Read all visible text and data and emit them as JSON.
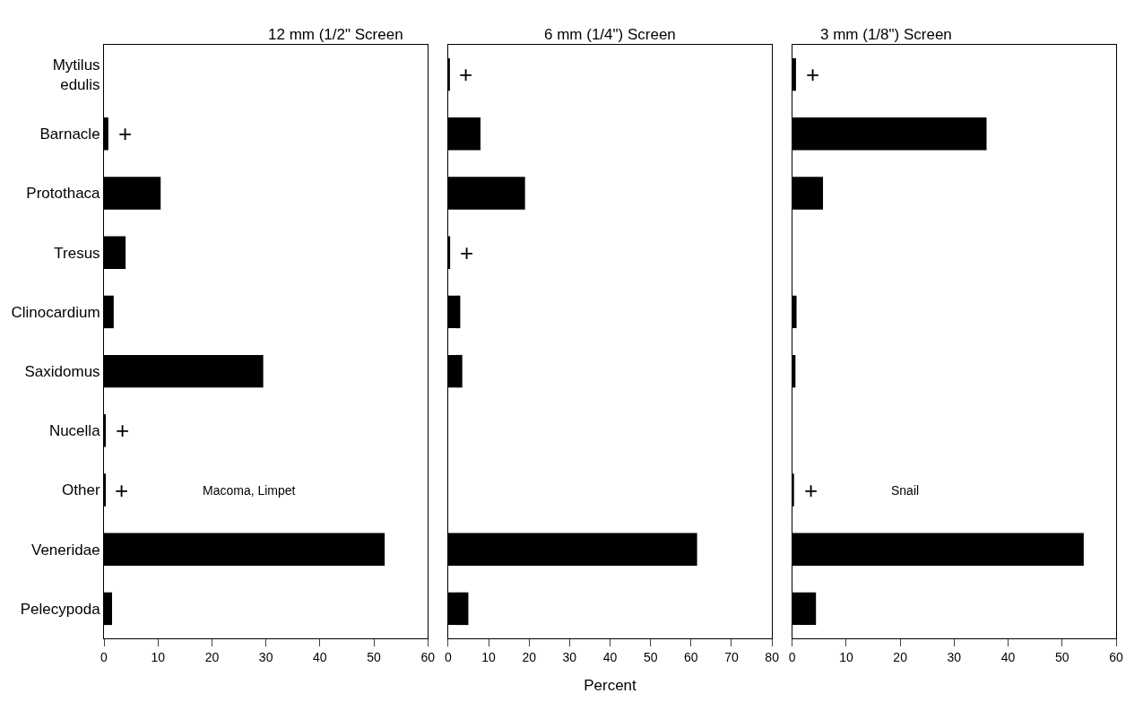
{
  "chart_data": [
    {
      "type": "bar",
      "orientation": "horizontal",
      "title": "12 mm (1/2\" Screen",
      "categories": [
        "Mytilus edulis",
        "Barnacle",
        "Protothaca",
        "Tresus",
        "Clinocardium",
        "Saxidomus",
        "Nucella",
        "Other",
        "Veneridae",
        "Pelecypoda"
      ],
      "values": [
        null,
        0.8,
        10.5,
        4,
        1.8,
        29.5,
        0.3,
        0.2,
        52,
        1.5
      ],
      "color": "#000000",
      "xlim": [
        0,
        60
      ],
      "xticks": [
        0,
        10,
        20,
        30,
        40,
        50,
        60
      ],
      "value_labels": [
        null,
        "+",
        null,
        null,
        null,
        null,
        "+",
        "+",
        null,
        null
      ],
      "annotations": [
        "Macoma, Limpet"
      ]
    },
    {
      "type": "bar",
      "orientation": "horizontal",
      "title": "6 mm (1/4\") Screen",
      "xlabel": "Percent",
      "tick_labels": "x",
      "categories": [
        null,
        null,
        null,
        null,
        null,
        null,
        null,
        null,
        null,
        null
      ],
      "values": [
        0.3,
        8,
        19,
        0.5,
        3,
        3.5,
        null,
        null,
        61.5,
        5
      ],
      "color": "#000000",
      "xlim": [
        0,
        80
      ],
      "xticks": [
        0,
        10,
        20,
        30,
        40,
        50,
        60,
        70,
        80
      ],
      "value_labels": [
        "+",
        null,
        null,
        "+",
        null,
        null,
        null,
        null,
        null,
        null
      ]
    },
    {
      "type": "bar",
      "orientation": "horizontal",
      "title": "3 mm (1/8\") Screen",
      "tick_labels": "x",
      "categories": [
        null,
        null,
        null,
        null,
        null,
        null,
        null,
        null,
        null,
        null
      ],
      "values": [
        0.7,
        36,
        5.7,
        null,
        0.8,
        0.6,
        null,
        0.3,
        54,
        4.4
      ],
      "color": "#000000",
      "xlim": [
        0,
        60
      ],
      "xticks": [
        0,
        10,
        20,
        30,
        40,
        50,
        60
      ],
      "value_labels": [
        "+",
        null,
        null,
        null,
        null,
        null,
        null,
        "+",
        null,
        null
      ],
      "annotations": [
        "Snail"
      ]
    }
  ]
}
